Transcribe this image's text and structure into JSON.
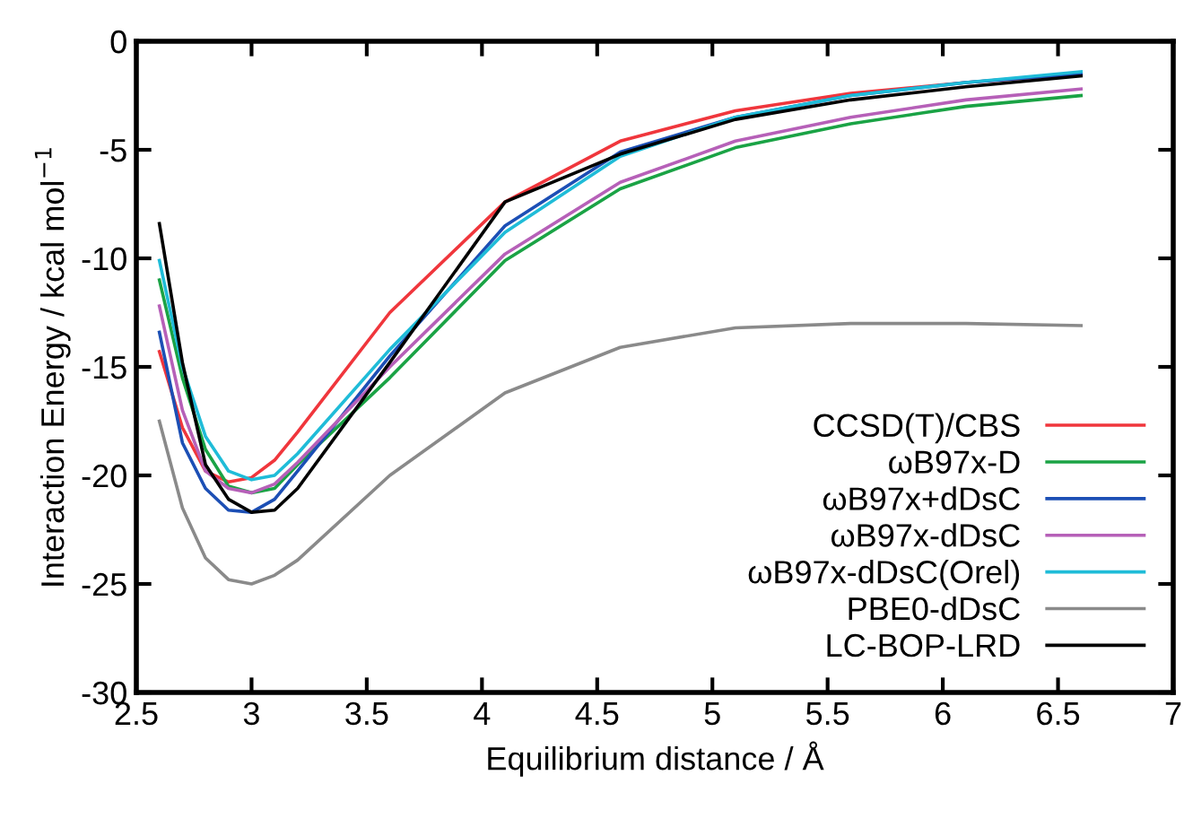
{
  "chart_data": {
    "type": "line",
    "xlabel": "Equilibrium distance / Å",
    "ylabel": "Interaction Energy / kcal mol$^{−1}$",
    "x": [
      2.6,
      2.7,
      2.8,
      2.9,
      3.0,
      3.1,
      3.2,
      3.6,
      4.1,
      4.6,
      5.1,
      5.6,
      6.1,
      6.6
    ],
    "series": [
      {
        "name": "CCSD(T)/CBS",
        "color": "#f0363c",
        "values": [
          -14.3,
          -17.8,
          -19.8,
          -20.3,
          -20.1,
          -19.3,
          -18.0,
          -12.5,
          -7.4,
          -4.6,
          -3.2,
          -2.4,
          -1.9,
          -1.5
        ]
      },
      {
        "name": "ωB97x-D",
        "color": "#1aa345",
        "values": [
          -11.0,
          -15.5,
          -18.8,
          -20.5,
          -20.8,
          -20.6,
          -19.5,
          -15.5,
          -10.1,
          -6.8,
          -4.9,
          -3.8,
          -3.0,
          -2.5
        ]
      },
      {
        "name": "ωB97x+dDsC",
        "color": "#1c4fb5",
        "values": [
          -13.4,
          -18.5,
          -20.6,
          -21.6,
          -21.7,
          -21.1,
          -19.8,
          -14.5,
          -8.5,
          -5.1,
          -3.5,
          -2.5,
          -1.9,
          -1.5
        ]
      },
      {
        "name": "ωB97x-dDsC",
        "color": "#b660b8",
        "values": [
          -12.2,
          -17.0,
          -19.8,
          -20.6,
          -20.8,
          -20.4,
          -19.4,
          -15.0,
          -9.8,
          -6.5,
          -4.6,
          -3.5,
          -2.7,
          -2.2
        ]
      },
      {
        "name": "ωB97x-dDsC(Orel)",
        "color": "#1fbcd8",
        "values": [
          -10.1,
          -15.0,
          -18.2,
          -19.8,
          -20.2,
          -20.0,
          -19.0,
          -14.2,
          -8.8,
          -5.3,
          -3.5,
          -2.5,
          -1.9,
          -1.4
        ]
      },
      {
        "name": "PBE0-dDsC",
        "color": "#8a8a8a",
        "values": [
          -17.5,
          -21.5,
          -23.8,
          -24.8,
          -25.0,
          -24.6,
          -23.9,
          -20.0,
          -16.2,
          -14.1,
          -13.2,
          -13.0,
          -13.0,
          -13.1
        ]
      },
      {
        "name": "LC-BOP-LRD",
        "color": "#000000",
        "values": [
          -8.4,
          -14.8,
          -19.5,
          -21.1,
          -21.7,
          -21.6,
          -20.6,
          -14.8,
          -7.4,
          -5.2,
          -3.6,
          -2.7,
          -2.1,
          -1.6
        ]
      }
    ],
    "xlim": [
      2.5,
      7
    ],
    "ylim": [
      -30,
      0
    ],
    "xticks": [
      2.5,
      3,
      3.5,
      4,
      4.5,
      5,
      5.5,
      6,
      6.5,
      7
    ],
    "yticks": [
      -30,
      -25,
      -20,
      -15,
      -10,
      -5,
      0
    ],
    "legend": "bottom right",
    "grid": false
  }
}
